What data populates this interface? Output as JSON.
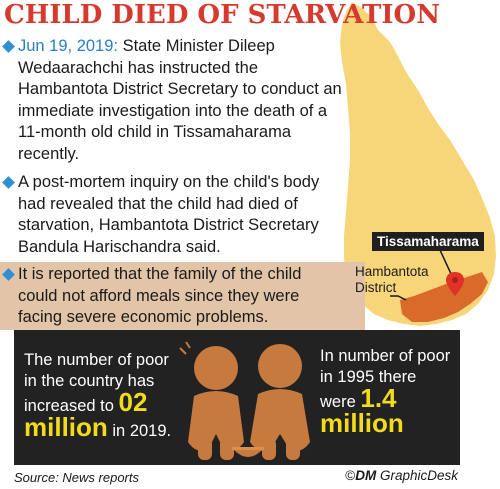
{
  "title": "CHILD DIED OF STARVATION",
  "paragraphs": {
    "p1_date": "Jun 19, 2019:",
    "p1_text": " State Minister Dileep Wedaarachchi has instructed the Hambantota District Secretary to conduct an immediate investigation into the death of a 11-month old child in Tissamaharama recently.",
    "p2_text": "A post-mortem inquiry on the child's body had revealed that the child had died of starvation, Hambantota District Secretary Bandula Harischandra said.",
    "p3_text": "It is reported that the family of the child could not afford meals since they were facing severe economic problems."
  },
  "map": {
    "label_tissamaharama": "Tissamaharama",
    "label_hambantota_line1": "Hambantota",
    "label_hambantota_line2": "District",
    "island_color": "#f7d67a",
    "district_color": "#d96a2a",
    "marker_color": "#e03226"
  },
  "stats": {
    "left_text": "The number of poor in the country has increased to",
    "left_value": "02 million",
    "left_suffix_in": " in",
    "left_year": "2019.",
    "right_text": "In number of poor in 1995 there were",
    "right_value": "1.4 million"
  },
  "footer": {
    "source": "Source: News reports",
    "credit_brand": "DM",
    "credit_desk": " GraphicDesk"
  },
  "colors": {
    "title": "#d63a2e",
    "bullet": "#2f8fd3",
    "highlight": "#f2dc1a",
    "stats_bg": "#222222",
    "band": "#e2c4a8"
  },
  "icons": {
    "bullet": "diamond-bullet-icon",
    "figures": "seated-children-figures",
    "copyright": "copyright-icon"
  }
}
